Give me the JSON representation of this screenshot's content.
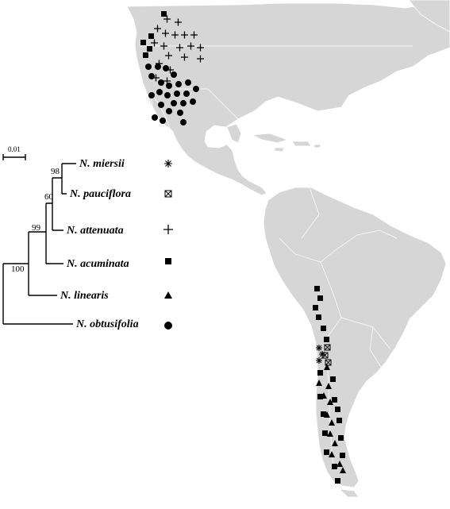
{
  "scale_bar": {
    "label": "0.01"
  },
  "taxa": [
    {
      "id": "miersii",
      "label": "N. miersii",
      "symbol": "asterisk"
    },
    {
      "id": "pauciflora",
      "label": "N. pauciflora",
      "symbol": "crossed-square"
    },
    {
      "id": "attenuata",
      "label": "N. attenuata",
      "symbol": "plus"
    },
    {
      "id": "acuminata",
      "label": "N. acuminata",
      "symbol": "filled-square"
    },
    {
      "id": "linearis",
      "label": "N. linearis",
      "symbol": "filled-triangle"
    },
    {
      "id": "obtusifolia",
      "label": "N. obtusifolia",
      "symbol": "filled-circle"
    }
  ],
  "bootstrap": [
    "98",
    "60",
    "99",
    "100"
  ],
  "colors": {
    "land": "#d6d6d6",
    "marker": "#000000",
    "background": "#ffffff"
  }
}
